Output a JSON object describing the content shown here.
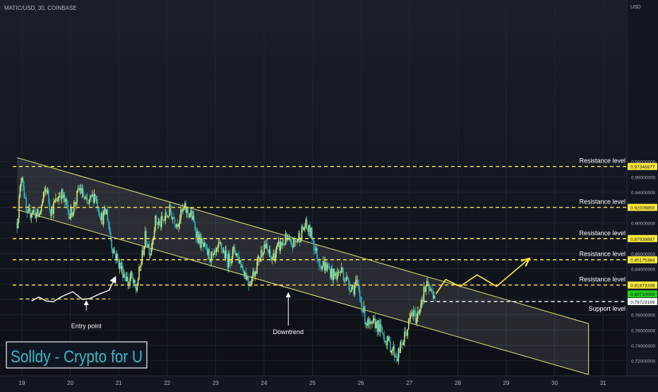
{
  "header": {
    "symbol": "MATIC/USD, 30, COINBASE",
    "currency": "USD"
  },
  "colors": {
    "background": "#131722",
    "candle_up": "#d9e36b",
    "candle_down": "#26b3c9",
    "level_line": "#ffeb3b",
    "support_line": "#ffffff",
    "channel_line": "#e8e874",
    "current_price_badge": "#22d11b"
  },
  "annotations": {
    "entry_point": "Entry point",
    "downtrend": "Downtrend",
    "branding": "Solldy - Crypto for U"
  },
  "chart_data": {
    "type": "candlestick",
    "title": "",
    "x_label": "",
    "y_label": "USD",
    "x_ticks": [
      "19",
      "20",
      "21",
      "22",
      "23",
      "24",
      "25",
      "26",
      "27",
      "28",
      "29",
      "30",
      "31"
    ],
    "y_range": [
      0.7,
      0.99
    ],
    "y_ticks": [
      "0.72000000",
      "0.74000000",
      "0.76000000",
      "0.78000000",
      "0.80000000",
      "0.82000000",
      "0.84000000",
      "0.86000000",
      "0.88000000",
      "0.90000000",
      "0.92000000",
      "0.94000000",
      "0.96000000",
      "0.98000000"
    ],
    "levels": [
      {
        "label": "Resistance level",
        "price": 0.97346877,
        "price_text": "0.97346877",
        "style": "dashed",
        "color": "yellow"
      },
      {
        "label": "Resistance level",
        "price": 0.9200985,
        "price_text": "0.92009850",
        "style": "dashed",
        "color": "yellow"
      },
      {
        "label": "Resistance level",
        "price": 0.87939887,
        "price_text": "0.87939887",
        "style": "dashed",
        "color": "yellow"
      },
      {
        "label": "Resistance level",
        "price": 0.85175384,
        "price_text": "0.85175384",
        "style": "dashed",
        "color": "yellow"
      },
      {
        "label": "Resistance level",
        "price": 0.81873338,
        "price_text": "0.81873338",
        "style": "dashed",
        "color": "yellow"
      },
      {
        "label": "Support level",
        "price": 0.79723169,
        "price_text": "0.79723169",
        "style": "dashed",
        "color": "white"
      }
    ],
    "current_price": {
      "price": 0.8071,
      "price_text": "0.80710000"
    },
    "channel": {
      "upper": [
        [
          18.9,
          0.985
        ],
        [
          28.0,
          0.818
        ]
      ],
      "lower": [
        [
          18.9,
          0.917
        ],
        [
          30.7,
          0.702
        ]
      ],
      "end_x": 30.7
    },
    "projection": [
      [
        27.55,
        0.807
      ],
      [
        27.75,
        0.826
      ],
      [
        28.05,
        0.817
      ],
      [
        28.4,
        0.832
      ],
      [
        28.8,
        0.817
      ],
      [
        29.45,
        0.852
      ]
    ],
    "entry_level": {
      "price": 0.8005,
      "from_x": 18.95,
      "to_x": 20.82
    },
    "entry_curve": [
      [
        19.2,
        0.798
      ],
      [
        19.35,
        0.803
      ],
      [
        19.5,
        0.798
      ],
      [
        19.65,
        0.797
      ],
      [
        19.8,
        0.803
      ],
      [
        20.05,
        0.81
      ],
      [
        20.25,
        0.8
      ],
      [
        20.4,
        0.801
      ],
      [
        20.6,
        0.807
      ],
      [
        20.8,
        0.812
      ],
      [
        20.93,
        0.829
      ]
    ],
    "entry_label_at": {
      "x": 20.33,
      "price": 0.783
    },
    "downtrend_label_at": {
      "x": 24.5,
      "price": 0.764
    },
    "price_path": [
      [
        18.9,
        0.9
      ],
      [
        19.0,
        0.968
      ],
      [
        19.1,
        0.905
      ],
      [
        19.2,
        0.917
      ],
      [
        19.35,
        0.908
      ],
      [
        19.5,
        0.947
      ],
      [
        19.6,
        0.915
      ],
      [
        19.8,
        0.94
      ],
      [
        20.0,
        0.91
      ],
      [
        20.2,
        0.945
      ],
      [
        20.35,
        0.922
      ],
      [
        20.5,
        0.938
      ],
      [
        20.65,
        0.905
      ],
      [
        20.75,
        0.915
      ],
      [
        20.85,
        0.872
      ],
      [
        20.95,
        0.855
      ],
      [
        21.05,
        0.84
      ],
      [
        21.15,
        0.83
      ],
      [
        21.2,
        0.82
      ],
      [
        21.25,
        0.83
      ],
      [
        21.35,
        0.81
      ],
      [
        21.45,
        0.845
      ],
      [
        21.55,
        0.882
      ],
      [
        21.65,
        0.862
      ],
      [
        21.75,
        0.902
      ],
      [
        21.85,
        0.898
      ],
      [
        21.95,
        0.905
      ],
      [
        22.05,
        0.915
      ],
      [
        22.2,
        0.9
      ],
      [
        22.35,
        0.918
      ],
      [
        22.5,
        0.91
      ],
      [
        22.65,
        0.878
      ],
      [
        22.8,
        0.862
      ],
      [
        22.95,
        0.852
      ],
      [
        23.1,
        0.87
      ],
      [
        23.25,
        0.85
      ],
      [
        23.4,
        0.865
      ],
      [
        23.55,
        0.842
      ],
      [
        23.7,
        0.822
      ],
      [
        23.85,
        0.845
      ],
      [
        24.0,
        0.872
      ],
      [
        24.15,
        0.852
      ],
      [
        24.3,
        0.868
      ],
      [
        24.45,
        0.878
      ],
      [
        24.55,
        0.87
      ],
      [
        24.65,
        0.875
      ],
      [
        24.75,
        0.885
      ],
      [
        24.85,
        0.897
      ],
      [
        25.0,
        0.882
      ],
      [
        25.05,
        0.865
      ],
      [
        25.15,
        0.848
      ],
      [
        25.3,
        0.842
      ],
      [
        25.45,
        0.83
      ],
      [
        25.6,
        0.838
      ],
      [
        25.75,
        0.82
      ],
      [
        25.85,
        0.815
      ],
      [
        25.9,
        0.822
      ],
      [
        26.0,
        0.798
      ],
      [
        26.1,
        0.772
      ],
      [
        26.2,
        0.762
      ],
      [
        26.3,
        0.77
      ],
      [
        26.45,
        0.755
      ],
      [
        26.55,
        0.745
      ],
      [
        26.65,
        0.735
      ],
      [
        26.75,
        0.725
      ],
      [
        26.85,
        0.742
      ],
      [
        26.95,
        0.76
      ],
      [
        27.05,
        0.782
      ],
      [
        27.15,
        0.775
      ],
      [
        27.25,
        0.8
      ],
      [
        27.35,
        0.818
      ],
      [
        27.45,
        0.808
      ],
      [
        27.55,
        0.807
      ]
    ]
  }
}
